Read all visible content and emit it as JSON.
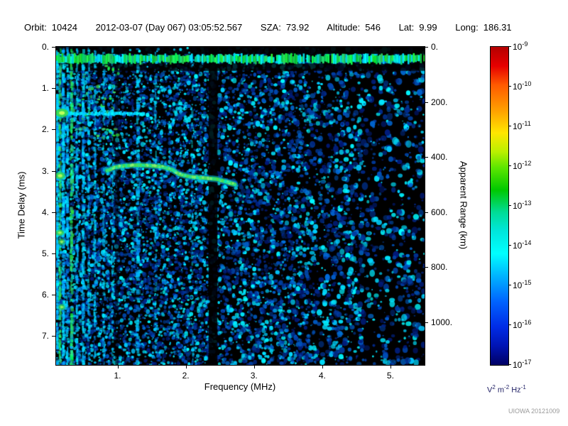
{
  "header": {
    "items": [
      {
        "label": "Orbit:",
        "value": "10424"
      },
      {
        "label": "",
        "value": "2012-03-07 (Day 067) 03:05:52.567"
      },
      {
        "label": "SZA:",
        "value": "73.92"
      },
      {
        "label": "Altitude:",
        "value": "546"
      },
      {
        "label": "Lat:",
        "value": "9.99"
      },
      {
        "label": "Long:",
        "value": "186.31"
      }
    ]
  },
  "footer": {
    "credit": "UIOWA 20121009"
  },
  "chart_data": {
    "type": "heatmap",
    "subtype": "radar-sounder-ionogram-spectrogram",
    "xlabel": "Frequency (MHz)",
    "ylabel_left": "Time Delay (ms)",
    "ylabel_right": "Apparent Range (km)",
    "x_range": [
      0.1,
      5.5
    ],
    "y_range_ms": [
      0,
      7.7
    ],
    "km_per_ms": 150,
    "x_ticks": [
      {
        "v": 1.0,
        "label": "1."
      },
      {
        "v": 2.0,
        "label": "2."
      },
      {
        "v": 3.0,
        "label": "3."
      },
      {
        "v": 4.0,
        "label": "4."
      },
      {
        "v": 5.0,
        "label": "5."
      }
    ],
    "y_ticks_ms": [
      {
        "v": 0,
        "label": "0."
      },
      {
        "v": 1,
        "label": "1."
      },
      {
        "v": 2,
        "label": "2."
      },
      {
        "v": 3,
        "label": "3."
      },
      {
        "v": 4,
        "label": "4."
      },
      {
        "v": 5,
        "label": "5."
      },
      {
        "v": 6,
        "label": "6."
      },
      {
        "v": 7,
        "label": "7."
      }
    ],
    "right_ticks_km": [
      {
        "v": 0,
        "label": "0."
      },
      {
        "v": 200,
        "label": "200."
      },
      {
        "v": 400,
        "label": "400."
      },
      {
        "v": 600,
        "label": "600."
      },
      {
        "v": 800,
        "label": "800."
      },
      {
        "v": 1000,
        "label": "1000."
      }
    ],
    "colorbar": {
      "scale": "log",
      "min": 1e-17,
      "max": 1e-09,
      "tick_exponents": [
        -9,
        -10,
        -11,
        -12,
        -13,
        -14,
        -15,
        -16,
        -17
      ],
      "unit_parts": [
        {
          "t": "V",
          "sup": "2"
        },
        {
          "t": " m",
          "sup": "-2"
        },
        {
          "t": " Hz",
          "sup": "-1"
        }
      ],
      "gradient": [
        {
          "pos": 0,
          "color": "#b40000"
        },
        {
          "pos": 6,
          "color": "#e60000"
        },
        {
          "pos": 12,
          "color": "#ff5a00"
        },
        {
          "pos": 20,
          "color": "#ffa000"
        },
        {
          "pos": 27,
          "color": "#ffe600"
        },
        {
          "pos": 33,
          "color": "#baf000"
        },
        {
          "pos": 38,
          "color": "#5ce600"
        },
        {
          "pos": 45,
          "color": "#00c800"
        },
        {
          "pos": 52,
          "color": "#00dc96"
        },
        {
          "pos": 58,
          "color": "#00e6dc"
        },
        {
          "pos": 65,
          "color": "#00ffff"
        },
        {
          "pos": 72,
          "color": "#00b4ff"
        },
        {
          "pos": 80,
          "color": "#0064ff"
        },
        {
          "pos": 88,
          "color": "#002ce6"
        },
        {
          "pos": 94,
          "color": "#0014b4"
        },
        {
          "pos": 100,
          "color": "#000064"
        }
      ]
    },
    "features": {
      "seed": 97531,
      "noise": {
        "count": 14000,
        "zones": [
          {
            "f0": 0.1,
            "f1": 2.35,
            "density": 1.0,
            "rmax": 2.2
          },
          {
            "f0": 2.35,
            "f1": 3.8,
            "density": 0.7,
            "rmax": 2.6
          },
          {
            "f0": 3.8,
            "f1": 4.6,
            "density": 0.45,
            "rmax": 3.2
          },
          {
            "f0": 4.6,
            "f1": 5.51,
            "density": 0.28,
            "rmax": 3.6
          }
        ]
      },
      "lanes": [
        {
          "t0": 0.0,
          "t1": 0.17,
          "a": 0.92
        },
        {
          "t0": 0.4,
          "t1": 0.58,
          "a": 0.8
        }
      ],
      "surface_band": {
        "t0": 0.2,
        "t1": 0.38
      },
      "dark_columns": [
        {
          "f": 2.4,
          "w": 0.13,
          "a": 0.88
        },
        {
          "f": 0.99,
          "w": 0.05,
          "a": 0.5
        }
      ],
      "stripes": [
        {
          "f": 0.12,
          "w": 0.045,
          "i": 0.95,
          "c": "cyan"
        },
        {
          "f": 0.16,
          "w": 0.03,
          "i": 0.75,
          "c": "green"
        },
        {
          "f": 0.21,
          "w": 0.04,
          "i": 0.9,
          "c": "cyan"
        },
        {
          "f": 0.27,
          "w": 0.035,
          "i": 0.7,
          "c": "cyan"
        },
        {
          "f": 0.33,
          "w": 0.04,
          "i": 0.85,
          "c": "green"
        },
        {
          "f": 0.41,
          "w": 0.03,
          "i": 0.6,
          "c": "cyan"
        },
        {
          "f": 0.5,
          "w": 0.04,
          "i": 0.7,
          "c": "cyan"
        },
        {
          "f": 0.58,
          "w": 0.03,
          "i": 0.5,
          "c": "cyan"
        },
        {
          "f": 0.67,
          "w": 0.03,
          "i": 0.55,
          "c": "cyan"
        },
        {
          "f": 0.8,
          "w": 0.03,
          "i": 0.4,
          "c": "cyan"
        },
        {
          "f": 0.93,
          "w": 0.03,
          "i": 0.33,
          "c": "cyan"
        },
        {
          "f": 1.3,
          "w": 0.05,
          "i": 0.55,
          "c": "cyan"
        },
        {
          "f": 1.56,
          "w": 0.03,
          "i": 0.28,
          "c": "cyan"
        },
        {
          "f": 2.1,
          "w": 0.03,
          "i": 0.22,
          "c": "cyan"
        }
      ],
      "h_bands": [
        {
          "t": 1.62,
          "f0": 0.1,
          "f1": 1.38,
          "i": 1.0
        },
        {
          "t": 3.15,
          "f0": 0.1,
          "f1": 0.5,
          "i": 0.55
        }
      ],
      "edge_blobs": [
        {
          "t": 1.6,
          "rx": 9,
          "ry": 6,
          "bright": 1
        },
        {
          "t": 3.12,
          "rx": 7,
          "ry": 5,
          "bright": 0.9
        },
        {
          "t": 4.5,
          "rx": 6,
          "ry": 4,
          "bright": 0.8
        },
        {
          "t": 4.72,
          "rx": 5,
          "ry": 4,
          "bright": 0.7
        },
        {
          "t": 6.3,
          "rx": 5,
          "ry": 4,
          "bright": 0.7
        }
      ],
      "green_region": {
        "f0": 0.35,
        "f1": 1.05,
        "t0": 0.45,
        "t1": 2.2,
        "count": 45
      },
      "sparkles": {
        "f0": 0.1,
        "f1": 2.35,
        "count": 260
      },
      "trace": [
        [
          0.85,
          3.0
        ],
        [
          0.95,
          2.92
        ],
        [
          1.1,
          2.88
        ],
        [
          1.3,
          2.86
        ],
        [
          1.5,
          2.88
        ],
        [
          1.65,
          2.9
        ],
        [
          1.8,
          2.97
        ],
        [
          1.9,
          3.08
        ],
        [
          2.05,
          3.14
        ],
        [
          2.25,
          3.17
        ],
        [
          2.45,
          3.2
        ],
        [
          2.6,
          3.27
        ],
        [
          2.72,
          3.33
        ]
      ]
    }
  }
}
